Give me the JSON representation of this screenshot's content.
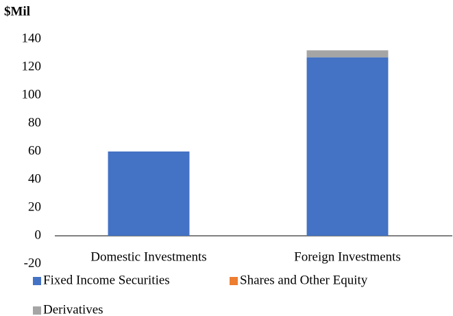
{
  "chart_data": {
    "type": "bar",
    "stacked": true,
    "y_label": "$Mil",
    "categories": [
      "Domestic Investments",
      "Foreign Investments"
    ],
    "series": [
      {
        "name": "Fixed Income Securities",
        "color": "#4472c4",
        "values": [
          60,
          127
        ]
      },
      {
        "name": "Shares and Other Equity",
        "color": "#ed7d31",
        "values": [
          0,
          0
        ]
      },
      {
        "name": "Derivatives",
        "color": "#a5a5a5",
        "values": [
          0,
          5
        ]
      }
    ],
    "ylim": [
      -20,
      140
    ],
    "yticks": [
      -20,
      0,
      20,
      40,
      60,
      80,
      100,
      120,
      140
    ],
    "grid": false,
    "legend": "bottom"
  }
}
